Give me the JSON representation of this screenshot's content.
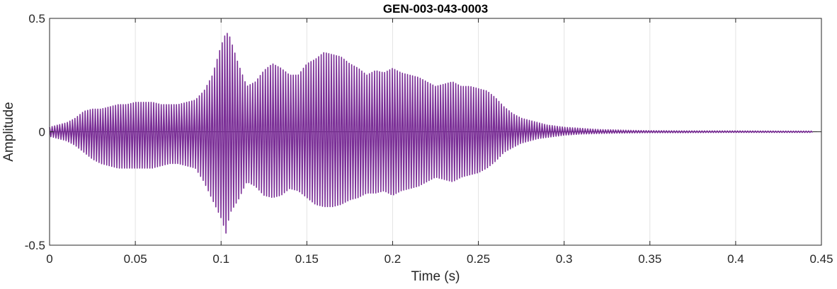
{
  "chart_data": {
    "type": "line",
    "title": "GEN-003-043-0003",
    "xlabel": "Time (s)",
    "ylabel": "Amplitude",
    "xlim": [
      0,
      0.45
    ],
    "ylim": [
      -0.5,
      0.5
    ],
    "x_ticks": [
      0,
      0.05,
      0.1,
      0.15,
      0.2,
      0.25,
      0.3,
      0.35,
      0.4,
      0.45
    ],
    "x_tick_labels": [
      "0",
      "0.05",
      "0.1",
      "0.15",
      "0.2",
      "0.25",
      "0.3",
      "0.35",
      "0.4",
      "0.45"
    ],
    "y_ticks": [
      -0.5,
      0,
      0.5
    ],
    "y_tick_labels": [
      "-0.5",
      "0",
      "0.5"
    ],
    "grid": "vertical",
    "colors": {
      "series": "#7a2e96",
      "grid": "#e3e3e3",
      "axes": "#262626"
    },
    "series": [
      {
        "sampled": true,
        "x": [
          0,
          0.005,
          0.01,
          0.015,
          0.02,
          0.025,
          0.03,
          0.035,
          0.04,
          0.045,
          0.05,
          0.055,
          0.06,
          0.065,
          0.07,
          0.075,
          0.08,
          0.085,
          0.09,
          0.095,
          0.1,
          0.103,
          0.105,
          0.11,
          0.115,
          0.12,
          0.125,
          0.13,
          0.135,
          0.14,
          0.145,
          0.15,
          0.155,
          0.16,
          0.165,
          0.17,
          0.175,
          0.18,
          0.185,
          0.19,
          0.195,
          0.2,
          0.205,
          0.21,
          0.215,
          0.22,
          0.225,
          0.23,
          0.235,
          0.24,
          0.245,
          0.25,
          0.255,
          0.26,
          0.265,
          0.27,
          0.275,
          0.28,
          0.285,
          0.29,
          0.295,
          0.3,
          0.31,
          0.32,
          0.33,
          0.34,
          0.35,
          0.37,
          0.4,
          0.43,
          0.445
        ],
        "upper": [
          0.02,
          0.03,
          0.04,
          0.06,
          0.09,
          0.1,
          0.1,
          0.11,
          0.12,
          0.12,
          0.13,
          0.13,
          0.13,
          0.12,
          0.12,
          0.12,
          0.13,
          0.14,
          0.18,
          0.25,
          0.38,
          0.44,
          0.42,
          0.3,
          0.2,
          0.22,
          0.27,
          0.3,
          0.28,
          0.25,
          0.25,
          0.3,
          0.32,
          0.35,
          0.34,
          0.33,
          0.3,
          0.28,
          0.25,
          0.27,
          0.26,
          0.28,
          0.26,
          0.25,
          0.24,
          0.22,
          0.2,
          0.21,
          0.22,
          0.2,
          0.2,
          0.19,
          0.18,
          0.15,
          0.11,
          0.08,
          0.06,
          0.05,
          0.04,
          0.03,
          0.025,
          0.02,
          0.015,
          0.01,
          0.008,
          0.006,
          0.005,
          0.004,
          0.004,
          0.003,
          0.003
        ],
        "lower": [
          -0.02,
          -0.03,
          -0.04,
          -0.06,
          -0.09,
          -0.12,
          -0.14,
          -0.15,
          -0.16,
          -0.16,
          -0.16,
          -0.16,
          -0.16,
          -0.15,
          -0.14,
          -0.14,
          -0.15,
          -0.16,
          -0.22,
          -0.3,
          -0.38,
          -0.45,
          -0.36,
          -0.3,
          -0.22,
          -0.24,
          -0.28,
          -0.29,
          -0.28,
          -0.25,
          -0.26,
          -0.29,
          -0.32,
          -0.33,
          -0.33,
          -0.32,
          -0.3,
          -0.29,
          -0.27,
          -0.27,
          -0.26,
          -0.28,
          -0.26,
          -0.25,
          -0.24,
          -0.22,
          -0.2,
          -0.21,
          -0.22,
          -0.2,
          -0.19,
          -0.18,
          -0.16,
          -0.13,
          -0.09,
          -0.07,
          -0.05,
          -0.04,
          -0.03,
          -0.025,
          -0.02,
          -0.015,
          -0.01,
          -0.008,
          -0.006,
          -0.005,
          -0.004,
          -0.004,
          -0.003,
          -0.003,
          -0.003
        ]
      }
    ]
  }
}
